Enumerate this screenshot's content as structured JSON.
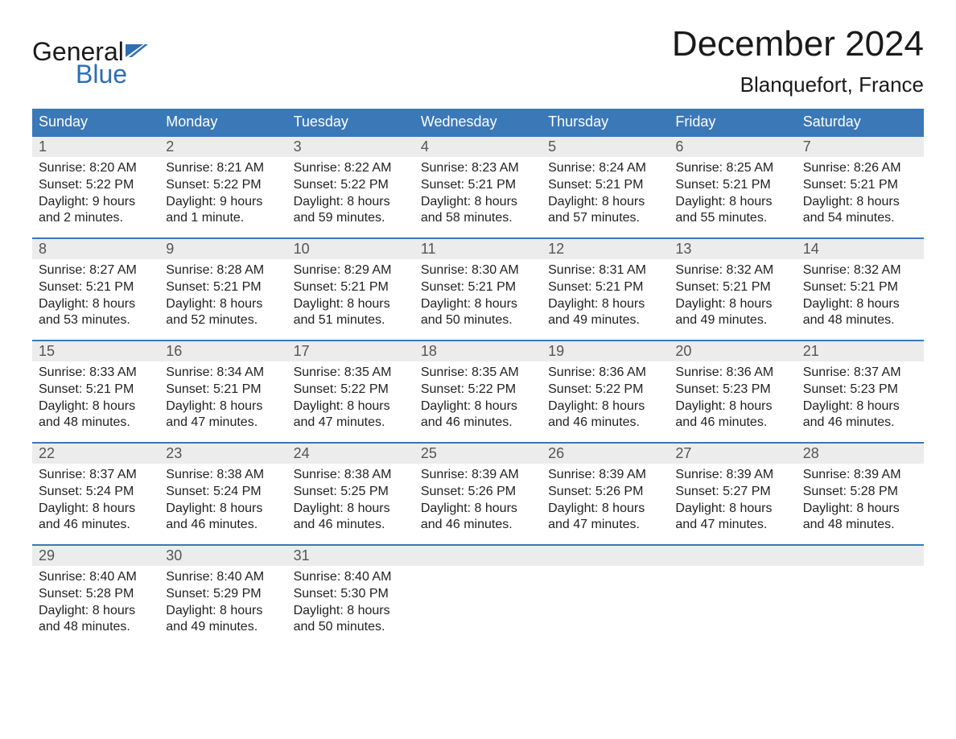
{
  "logo": {
    "part1": "General",
    "part2": "Blue"
  },
  "title": "December 2024",
  "location": "Blanquefort, France",
  "colors": {
    "header_bg": "#3a78b8",
    "header_text": "#ffffff",
    "daynum_bg": "#ececec",
    "daynum_text": "#555555",
    "body_text": "#222222",
    "rule": "#3a78b8",
    "logo_blue": "#2d6eb5"
  },
  "weekdays": [
    "Sunday",
    "Monday",
    "Tuesday",
    "Wednesday",
    "Thursday",
    "Friday",
    "Saturday"
  ],
  "weeks": [
    [
      {
        "n": "1",
        "sr": "Sunrise: 8:20 AM",
        "ss": "Sunset: 5:22 PM",
        "d1": "Daylight: 9 hours",
        "d2": "and 2 minutes."
      },
      {
        "n": "2",
        "sr": "Sunrise: 8:21 AM",
        "ss": "Sunset: 5:22 PM",
        "d1": "Daylight: 9 hours",
        "d2": "and 1 minute."
      },
      {
        "n": "3",
        "sr": "Sunrise: 8:22 AM",
        "ss": "Sunset: 5:22 PM",
        "d1": "Daylight: 8 hours",
        "d2": "and 59 minutes."
      },
      {
        "n": "4",
        "sr": "Sunrise: 8:23 AM",
        "ss": "Sunset: 5:21 PM",
        "d1": "Daylight: 8 hours",
        "d2": "and 58 minutes."
      },
      {
        "n": "5",
        "sr": "Sunrise: 8:24 AM",
        "ss": "Sunset: 5:21 PM",
        "d1": "Daylight: 8 hours",
        "d2": "and 57 minutes."
      },
      {
        "n": "6",
        "sr": "Sunrise: 8:25 AM",
        "ss": "Sunset: 5:21 PM",
        "d1": "Daylight: 8 hours",
        "d2": "and 55 minutes."
      },
      {
        "n": "7",
        "sr": "Sunrise: 8:26 AM",
        "ss": "Sunset: 5:21 PM",
        "d1": "Daylight: 8 hours",
        "d2": "and 54 minutes."
      }
    ],
    [
      {
        "n": "8",
        "sr": "Sunrise: 8:27 AM",
        "ss": "Sunset: 5:21 PM",
        "d1": "Daylight: 8 hours",
        "d2": "and 53 minutes."
      },
      {
        "n": "9",
        "sr": "Sunrise: 8:28 AM",
        "ss": "Sunset: 5:21 PM",
        "d1": "Daylight: 8 hours",
        "d2": "and 52 minutes."
      },
      {
        "n": "10",
        "sr": "Sunrise: 8:29 AM",
        "ss": "Sunset: 5:21 PM",
        "d1": "Daylight: 8 hours",
        "d2": "and 51 minutes."
      },
      {
        "n": "11",
        "sr": "Sunrise: 8:30 AM",
        "ss": "Sunset: 5:21 PM",
        "d1": "Daylight: 8 hours",
        "d2": "and 50 minutes."
      },
      {
        "n": "12",
        "sr": "Sunrise: 8:31 AM",
        "ss": "Sunset: 5:21 PM",
        "d1": "Daylight: 8 hours",
        "d2": "and 49 minutes."
      },
      {
        "n": "13",
        "sr": "Sunrise: 8:32 AM",
        "ss": "Sunset: 5:21 PM",
        "d1": "Daylight: 8 hours",
        "d2": "and 49 minutes."
      },
      {
        "n": "14",
        "sr": "Sunrise: 8:32 AM",
        "ss": "Sunset: 5:21 PM",
        "d1": "Daylight: 8 hours",
        "d2": "and 48 minutes."
      }
    ],
    [
      {
        "n": "15",
        "sr": "Sunrise: 8:33 AM",
        "ss": "Sunset: 5:21 PM",
        "d1": "Daylight: 8 hours",
        "d2": "and 48 minutes."
      },
      {
        "n": "16",
        "sr": "Sunrise: 8:34 AM",
        "ss": "Sunset: 5:21 PM",
        "d1": "Daylight: 8 hours",
        "d2": "and 47 minutes."
      },
      {
        "n": "17",
        "sr": "Sunrise: 8:35 AM",
        "ss": "Sunset: 5:22 PM",
        "d1": "Daylight: 8 hours",
        "d2": "and 47 minutes."
      },
      {
        "n": "18",
        "sr": "Sunrise: 8:35 AM",
        "ss": "Sunset: 5:22 PM",
        "d1": "Daylight: 8 hours",
        "d2": "and 46 minutes."
      },
      {
        "n": "19",
        "sr": "Sunrise: 8:36 AM",
        "ss": "Sunset: 5:22 PM",
        "d1": "Daylight: 8 hours",
        "d2": "and 46 minutes."
      },
      {
        "n": "20",
        "sr": "Sunrise: 8:36 AM",
        "ss": "Sunset: 5:23 PM",
        "d1": "Daylight: 8 hours",
        "d2": "and 46 minutes."
      },
      {
        "n": "21",
        "sr": "Sunrise: 8:37 AM",
        "ss": "Sunset: 5:23 PM",
        "d1": "Daylight: 8 hours",
        "d2": "and 46 minutes."
      }
    ],
    [
      {
        "n": "22",
        "sr": "Sunrise: 8:37 AM",
        "ss": "Sunset: 5:24 PM",
        "d1": "Daylight: 8 hours",
        "d2": "and 46 minutes."
      },
      {
        "n": "23",
        "sr": "Sunrise: 8:38 AM",
        "ss": "Sunset: 5:24 PM",
        "d1": "Daylight: 8 hours",
        "d2": "and 46 minutes."
      },
      {
        "n": "24",
        "sr": "Sunrise: 8:38 AM",
        "ss": "Sunset: 5:25 PM",
        "d1": "Daylight: 8 hours",
        "d2": "and 46 minutes."
      },
      {
        "n": "25",
        "sr": "Sunrise: 8:39 AM",
        "ss": "Sunset: 5:26 PM",
        "d1": "Daylight: 8 hours",
        "d2": "and 46 minutes."
      },
      {
        "n": "26",
        "sr": "Sunrise: 8:39 AM",
        "ss": "Sunset: 5:26 PM",
        "d1": "Daylight: 8 hours",
        "d2": "and 47 minutes."
      },
      {
        "n": "27",
        "sr": "Sunrise: 8:39 AM",
        "ss": "Sunset: 5:27 PM",
        "d1": "Daylight: 8 hours",
        "d2": "and 47 minutes."
      },
      {
        "n": "28",
        "sr": "Sunrise: 8:39 AM",
        "ss": "Sunset: 5:28 PM",
        "d1": "Daylight: 8 hours",
        "d2": "and 48 minutes."
      }
    ],
    [
      {
        "n": "29",
        "sr": "Sunrise: 8:40 AM",
        "ss": "Sunset: 5:28 PM",
        "d1": "Daylight: 8 hours",
        "d2": "and 48 minutes."
      },
      {
        "n": "30",
        "sr": "Sunrise: 8:40 AM",
        "ss": "Sunset: 5:29 PM",
        "d1": "Daylight: 8 hours",
        "d2": "and 49 minutes."
      },
      {
        "n": "31",
        "sr": "Sunrise: 8:40 AM",
        "ss": "Sunset: 5:30 PM",
        "d1": "Daylight: 8 hours",
        "d2": "and 50 minutes."
      },
      {
        "n": "",
        "sr": "",
        "ss": "",
        "d1": "",
        "d2": ""
      },
      {
        "n": "",
        "sr": "",
        "ss": "",
        "d1": "",
        "d2": ""
      },
      {
        "n": "",
        "sr": "",
        "ss": "",
        "d1": "",
        "d2": ""
      },
      {
        "n": "",
        "sr": "",
        "ss": "",
        "d1": "",
        "d2": ""
      }
    ]
  ]
}
